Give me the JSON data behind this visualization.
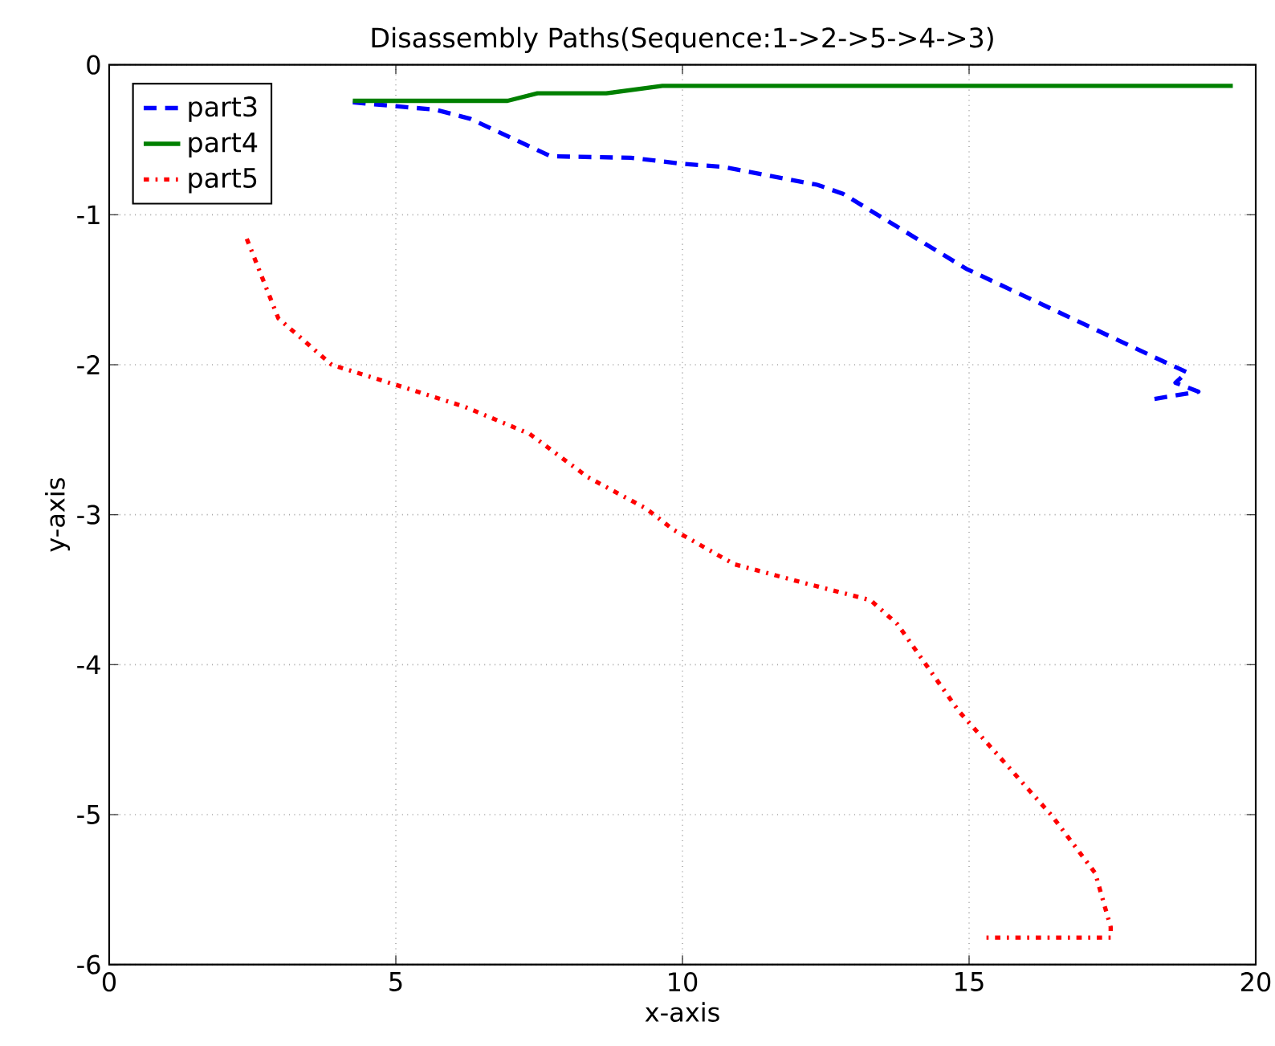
{
  "chart_data": {
    "type": "line",
    "title": "Disassembly Paths(Sequence:1->2->5->4->3)",
    "xlabel": "x-axis",
    "ylabel": "y-axis",
    "xlim": [
      0,
      20
    ],
    "ylim": [
      -6,
      0
    ],
    "xticks": [
      0,
      5,
      10,
      15,
      20
    ],
    "yticks": [
      -6,
      -5,
      -4,
      -3,
      -2,
      -1,
      0
    ],
    "grid": true,
    "legend": "top left",
    "series": [
      {
        "name": "part3",
        "color": "#0000ff",
        "line_style": "dashed",
        "x": [
          4.25,
          5.7,
          6.3,
          7.7,
          9.1,
          10.0,
          10.7,
          12.35,
          12.8,
          14.95,
          18.4,
          18.8,
          18.6,
          19.0,
          18.2
        ],
        "values": [
          -0.25,
          -0.3,
          -0.36,
          -0.61,
          -0.62,
          -0.66,
          -0.68,
          -0.8,
          -0.86,
          -1.36,
          -1.98,
          -2.05,
          -2.12,
          -2.18,
          -2.23
        ]
      },
      {
        "name": "part4",
        "color": "#008000",
        "line_style": "solid",
        "x": [
          4.25,
          6.95,
          7.47,
          8.67,
          9.65,
          19.6
        ],
        "values": [
          -0.24,
          -0.24,
          -0.19,
          -0.19,
          -0.14,
          -0.14
        ]
      },
      {
        "name": "part5",
        "color": "#ff0000",
        "line_style": "dotted",
        "x": [
          2.4,
          2.95,
          3.88,
          5.05,
          6.2,
          7.33,
          8.35,
          9.37,
          9.84,
          10.9,
          12.07,
          13.28,
          13.75,
          14.82,
          16.45,
          17.2,
          17.47,
          17.47,
          15.3
        ],
        "values": [
          -1.16,
          -1.69,
          -2.0,
          -2.14,
          -2.28,
          -2.46,
          -2.75,
          -2.96,
          -3.1,
          -3.33,
          -3.45,
          -3.57,
          -3.73,
          -4.31,
          -5.01,
          -5.39,
          -5.75,
          -5.82,
          -5.82
        ]
      }
    ]
  }
}
